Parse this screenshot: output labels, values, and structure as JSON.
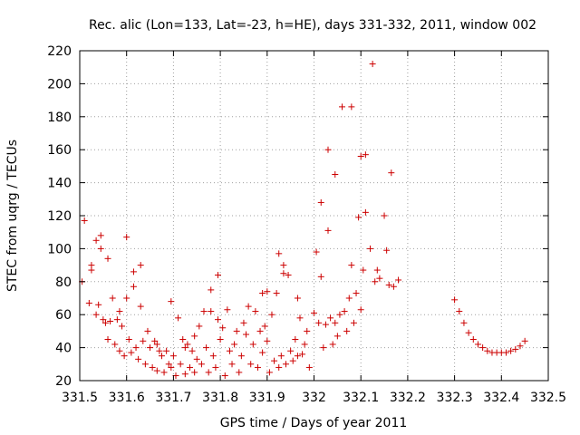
{
  "chart_data": {
    "type": "scatter",
    "title": "Rec. alic (Lon=133, Lat=-23, h=HE), days 331-332, 2011, window 002",
    "xlabel": "GPS time / Days of year 2011",
    "ylabel": "STEC from uqrg / TECUs",
    "xlim": [
      331.5,
      332.5
    ],
    "ylim": [
      20,
      220
    ],
    "x_ticks": [
      "331.5",
      "331.6",
      "331.7",
      "331.8",
      "331.9",
      "332",
      "332.1",
      "332.2",
      "332.3",
      "332.4",
      "332.5"
    ],
    "y_ticks": [
      "20",
      "40",
      "60",
      "80",
      "100",
      "120",
      "140",
      "160",
      "180",
      "200",
      "220"
    ],
    "grid": true,
    "marker": "+",
    "color": "#cc0000",
    "points": [
      [
        331.505,
        80
      ],
      [
        331.51,
        117
      ],
      [
        331.52,
        67
      ],
      [
        331.525,
        87
      ],
      [
        331.525,
        90
      ],
      [
        331.535,
        105
      ],
      [
        331.535,
        60
      ],
      [
        331.54,
        66
      ],
      [
        331.545,
        108
      ],
      [
        331.545,
        100
      ],
      [
        331.55,
        57
      ],
      [
        331.555,
        55
      ],
      [
        331.56,
        94
      ],
      [
        331.56,
        45
      ],
      [
        331.565,
        56
      ],
      [
        331.57,
        70
      ],
      [
        331.575,
        42
      ],
      [
        331.58,
        57
      ],
      [
        331.585,
        62
      ],
      [
        331.585,
        38
      ],
      [
        331.59,
        53
      ],
      [
        331.595,
        35
      ],
      [
        331.6,
        107
      ],
      [
        331.6,
        70
      ],
      [
        331.605,
        45
      ],
      [
        331.61,
        37
      ],
      [
        331.615,
        86
      ],
      [
        331.615,
        77
      ],
      [
        331.62,
        40
      ],
      [
        331.625,
        33
      ],
      [
        331.63,
        65
      ],
      [
        331.63,
        90
      ],
      [
        331.635,
        44
      ],
      [
        331.64,
        30
      ],
      [
        331.645,
        50
      ],
      [
        331.65,
        40
      ],
      [
        331.655,
        28
      ],
      [
        331.66,
        44
      ],
      [
        331.665,
        42
      ],
      [
        331.665,
        26
      ],
      [
        331.67,
        38
      ],
      [
        331.675,
        35
      ],
      [
        331.68,
        25
      ],
      [
        331.685,
        38
      ],
      [
        331.69,
        30
      ],
      [
        331.695,
        68
      ],
      [
        331.695,
        28
      ],
      [
        331.7,
        35
      ],
      [
        331.705,
        23
      ],
      [
        331.71,
        58
      ],
      [
        331.715,
        30
      ],
      [
        331.72,
        45
      ],
      [
        331.725,
        40
      ],
      [
        331.725,
        24
      ],
      [
        331.73,
        42
      ],
      [
        331.735,
        28
      ],
      [
        331.74,
        38
      ],
      [
        331.745,
        25
      ],
      [
        331.745,
        47
      ],
      [
        331.75,
        33
      ],
      [
        331.755,
        53
      ],
      [
        331.76,
        30
      ],
      [
        331.765,
        62
      ],
      [
        331.77,
        40
      ],
      [
        331.775,
        25
      ],
      [
        331.78,
        75
      ],
      [
        331.78,
        62
      ],
      [
        331.785,
        35
      ],
      [
        331.79,
        28
      ],
      [
        331.795,
        84
      ],
      [
        331.795,
        57
      ],
      [
        331.8,
        45
      ],
      [
        331.805,
        52
      ],
      [
        331.81,
        23
      ],
      [
        331.815,
        63
      ],
      [
        331.82,
        38
      ],
      [
        331.825,
        30
      ],
      [
        331.83,
        42
      ],
      [
        331.835,
        50
      ],
      [
        331.84,
        25
      ],
      [
        331.845,
        35
      ],
      [
        331.85,
        55
      ],
      [
        331.855,
        48
      ],
      [
        331.86,
        65
      ],
      [
        331.865,
        30
      ],
      [
        331.87,
        42
      ],
      [
        331.875,
        62
      ],
      [
        331.88,
        28
      ],
      [
        331.885,
        50
      ],
      [
        331.89,
        73
      ],
      [
        331.89,
        37
      ],
      [
        331.895,
        53
      ],
      [
        331.9,
        74
      ],
      [
        331.9,
        44
      ],
      [
        331.905,
        25
      ],
      [
        331.91,
        60
      ],
      [
        331.915,
        32
      ],
      [
        331.92,
        73
      ],
      [
        331.925,
        97
      ],
      [
        331.925,
        28
      ],
      [
        331.93,
        35
      ],
      [
        331.935,
        90
      ],
      [
        331.935,
        85
      ],
      [
        331.94,
        30
      ],
      [
        331.945,
        84
      ],
      [
        331.95,
        38
      ],
      [
        331.955,
        32
      ],
      [
        331.96,
        45
      ],
      [
        331.965,
        70
      ],
      [
        331.965,
        35
      ],
      [
        331.97,
        58
      ],
      [
        331.975,
        36
      ],
      [
        331.98,
        42
      ],
      [
        331.985,
        50
      ],
      [
        331.99,
        28
      ],
      [
        332.0,
        61
      ],
      [
        332.005,
        98
      ],
      [
        332.01,
        55
      ],
      [
        332.015,
        128
      ],
      [
        332.015,
        83
      ],
      [
        332.02,
        40
      ],
      [
        332.025,
        54
      ],
      [
        332.03,
        160
      ],
      [
        332.03,
        111
      ],
      [
        332.035,
        58
      ],
      [
        332.04,
        42
      ],
      [
        332.045,
        145
      ],
      [
        332.045,
        55
      ],
      [
        332.05,
        47
      ],
      [
        332.055,
        60
      ],
      [
        332.06,
        186
      ],
      [
        332.065,
        62
      ],
      [
        332.07,
        50
      ],
      [
        332.075,
        70
      ],
      [
        332.08,
        186
      ],
      [
        332.08,
        90
      ],
      [
        332.085,
        55
      ],
      [
        332.09,
        73
      ],
      [
        332.095,
        119
      ],
      [
        332.1,
        156
      ],
      [
        332.1,
        63
      ],
      [
        332.105,
        87
      ],
      [
        332.11,
        122
      ],
      [
        332.11,
        157
      ],
      [
        332.12,
        100
      ],
      [
        332.125,
        212
      ],
      [
        332.13,
        80
      ],
      [
        332.135,
        87
      ],
      [
        332.14,
        82
      ],
      [
        332.15,
        120
      ],
      [
        332.155,
        99
      ],
      [
        332.16,
        78
      ],
      [
        332.165,
        146
      ],
      [
        332.17,
        77
      ],
      [
        332.18,
        81
      ],
      [
        332.3,
        69
      ],
      [
        332.31,
        62
      ],
      [
        332.32,
        55
      ],
      [
        332.33,
        49
      ],
      [
        332.34,
        45
      ],
      [
        332.35,
        42
      ],
      [
        332.36,
        40
      ],
      [
        332.37,
        38
      ],
      [
        332.38,
        37
      ],
      [
        332.39,
        37
      ],
      [
        332.4,
        37
      ],
      [
        332.41,
        37
      ],
      [
        332.42,
        38
      ],
      [
        332.43,
        39
      ],
      [
        332.44,
        41
      ],
      [
        332.45,
        44
      ]
    ]
  }
}
